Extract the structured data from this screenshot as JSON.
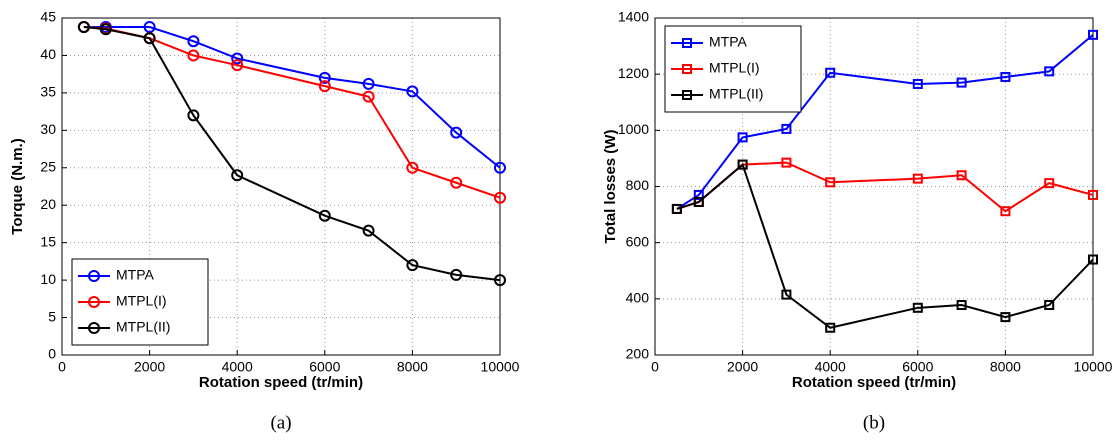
{
  "chart_data": [
    {
      "type": "line",
      "caption": "(a)",
      "xlabel": "Rotation speed (tr/min)",
      "ylabel": "Torque (N.m.)",
      "x": [
        500,
        1000,
        2000,
        3000,
        4000,
        6000,
        7000,
        8000,
        9000,
        10000
      ],
      "series": [
        {
          "name": "MTPA",
          "color": "#0000ff",
          "values": [
            43.8,
            43.8,
            43.8,
            41.9,
            39.6,
            37.0,
            36.2,
            35.2,
            29.7,
            25.0
          ]
        },
        {
          "name": "MTPL(I)",
          "color": "#ff0000",
          "values": [
            43.8,
            43.6,
            42.3,
            40.0,
            38.7,
            35.9,
            34.5,
            25.0,
            23.0,
            21.0
          ]
        },
        {
          "name": "MTPL(II)",
          "color": "#000000",
          "values": [
            43.8,
            43.5,
            42.3,
            32.0,
            24.0,
            18.6,
            16.6,
            12.0,
            10.7,
            10.0
          ]
        }
      ],
      "marker": "circle",
      "legend": "lower left",
      "grid": true,
      "xlim": [
        0,
        10000
      ],
      "xticks": [
        0,
        2000,
        4000,
        6000,
        8000,
        10000
      ],
      "ylim": [
        0,
        45
      ],
      "yticks": [
        0,
        5,
        10,
        15,
        20,
        25,
        30,
        35,
        40,
        45
      ]
    },
    {
      "type": "line",
      "caption": "(b)",
      "xlabel": "Rotation speed (tr/min)",
      "ylabel": "Total losses (W)",
      "x": [
        500,
        1000,
        2000,
        3000,
        4000,
        6000,
        7000,
        8000,
        9000,
        10000
      ],
      "series": [
        {
          "name": "MTPA",
          "color": "#0000ff",
          "values": [
            720,
            770,
            975,
            1005,
            1205,
            1165,
            1170,
            1190,
            1210,
            1340
          ]
        },
        {
          "name": "MTPL(I)",
          "color": "#ff0000",
          "values": [
            720,
            745,
            878,
            885,
            815,
            828,
            840,
            712,
            812,
            770
          ]
        },
        {
          "name": "MTPL(II)",
          "color": "#000000",
          "values": [
            720,
            745,
            878,
            415,
            297,
            368,
            378,
            335,
            378,
            540
          ]
        }
      ],
      "marker": "square",
      "legend": "upper left",
      "grid": true,
      "xlim": [
        0,
        10000
      ],
      "xticks": [
        0,
        2000,
        4000,
        6000,
        8000,
        10000
      ],
      "ylim": [
        200,
        1400
      ],
      "yticks": [
        200,
        400,
        600,
        800,
        1000,
        1200,
        1400
      ]
    }
  ]
}
